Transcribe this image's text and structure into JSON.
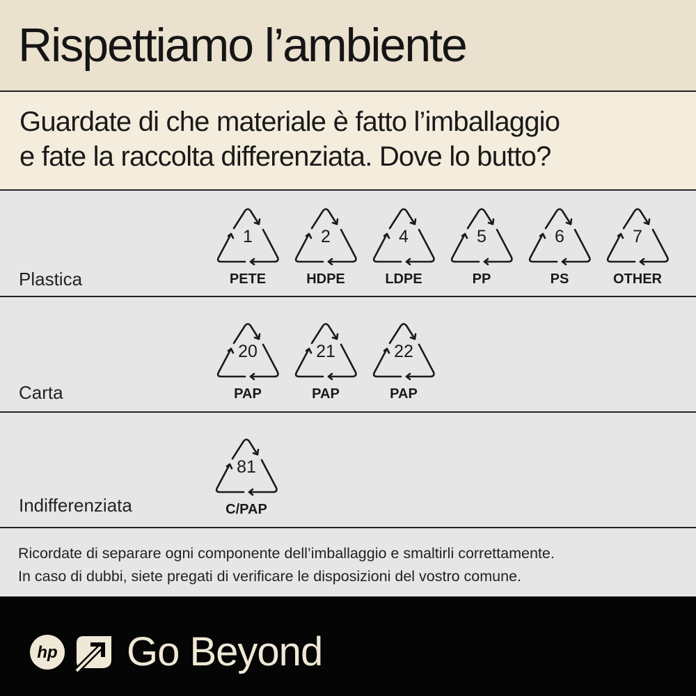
{
  "header": {
    "title": "Rispettiamo l’ambiente"
  },
  "subtitle": {
    "line1": "Guardate di che materiale è fatto l’imballaggio",
    "line2": "e fate la raccolta differenziata.  Dove lo butto?"
  },
  "categories": [
    {
      "label": "Plastica",
      "symbols": [
        {
          "code": "1",
          "abbr": "PETE"
        },
        {
          "code": "2",
          "abbr": "HDPE"
        },
        {
          "code": "4",
          "abbr": "LDPE"
        },
        {
          "code": "5",
          "abbr": "PP"
        },
        {
          "code": "6",
          "abbr": "PS"
        },
        {
          "code": "7",
          "abbr": "OTHER"
        }
      ]
    },
    {
      "label": "Carta",
      "symbols": [
        {
          "code": "20",
          "abbr": "PAP"
        },
        {
          "code": "21",
          "abbr": "PAP"
        },
        {
          "code": "22",
          "abbr": "PAP"
        }
      ]
    },
    {
      "label": "Indifferenziata",
      "symbols": [
        {
          "code": "81",
          "abbr": "C/PAP"
        }
      ]
    }
  ],
  "notes": {
    "line1": "Ricordate di separare ogni componente dell’imballaggio e smaltirli correttamente.",
    "line2": "In caso di dubbi, siete pregati di verificare le disposizioni del vostro comune."
  },
  "footer": {
    "logo": "hp",
    "tagline": "Go Beyond"
  },
  "colors": {
    "header_bg": "#ebe1cf",
    "subtitle_bg": "#f4eddd",
    "row_bg": "#e6e6e6",
    "footer_bg": "#050505",
    "footer_text": "#efe8d6"
  }
}
